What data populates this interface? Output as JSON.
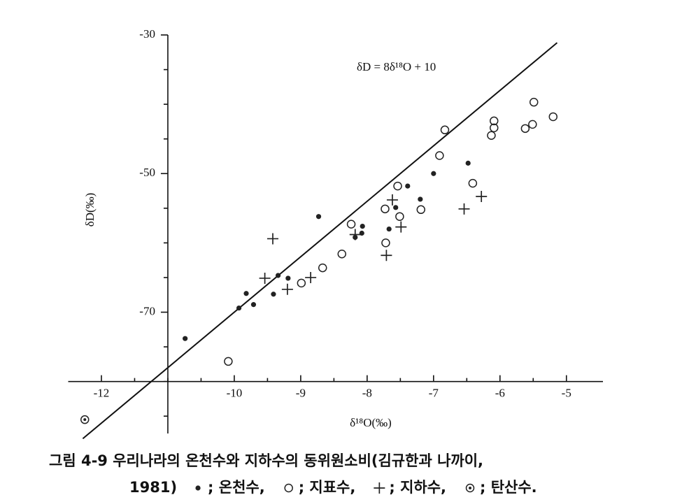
{
  "chart_data": {
    "type": "scatter",
    "x_label": "δ¹⁸O(‰)",
    "y_label": "δD(‰)",
    "xlim": [
      -12.5,
      -4.45
    ],
    "ylim": [
      -87.5,
      -30
    ],
    "xticks": [
      -12,
      -10,
      -9,
      -8,
      -7,
      -6,
      -5
    ],
    "xticks_minor": [
      -11.5,
      -11,
      -10.5,
      -9.5,
      -8.5,
      -7.5,
      -6.5,
      -5.5
    ],
    "yticks": [
      -30,
      -50,
      -70
    ],
    "yticks_minor": [
      -35,
      -40,
      -45,
      -55,
      -60,
      -65,
      -75,
      -80,
      -85
    ],
    "x_axis_at": -80,
    "y_axis_at": -11,
    "line": {
      "label": "δD = 8δ¹⁸O + 10",
      "slope": 8,
      "intercept": 10,
      "x": [
        -12.28,
        -5.14
      ]
    },
    "caption": [
      "그림 4-9  우리나라의  온천수와  지하수의  동위원소비(김규한과  나까이,",
      "1981)"
    ],
    "series": [
      {
        "name": "온천수",
        "legend_label": "; 온천수,",
        "marker": "filled",
        "color": "#222",
        "x": [
          -10.74,
          -9.93,
          -9.82,
          -9.71,
          -9.41,
          -9.34,
          -9.19,
          -8.73,
          -8.18,
          -8.08,
          -8.07,
          -7.67,
          -7.57,
          -7.39,
          -7.2,
          -7.0,
          -6.48
        ],
        "values": [
          -73.8,
          -69.4,
          -67.3,
          -68.9,
          -67.4,
          -64.7,
          -65.1,
          -56.2,
          -59.2,
          -58.6,
          -57.6,
          -58.0,
          -54.9,
          -51.8,
          -53.7,
          -50.0,
          -48.5
        ]
      },
      {
        "name": "지표수",
        "legend_label": "; 지표수,",
        "marker": "open",
        "color": "#222",
        "x": [
          -10.09,
          -8.99,
          -8.67,
          -8.38,
          -8.24,
          -7.73,
          -7.72,
          -7.51,
          -7.54,
          -7.19,
          -6.91,
          -6.83,
          -6.41,
          -6.13,
          -6.09,
          -6.09,
          -5.62,
          -5.51,
          -5.49,
          -5.2
        ],
        "values": [
          -77.1,
          -65.8,
          -63.6,
          -61.6,
          -57.3,
          -55.1,
          -60.0,
          -56.2,
          -51.8,
          -55.2,
          -47.4,
          -43.7,
          -51.4,
          -44.5,
          -43.4,
          -42.4,
          -43.5,
          -42.9,
          -39.7,
          -41.8
        ]
      },
      {
        "name": "지하수",
        "legend_label": "; 지하수,",
        "marker": "plus",
        "color": "#222",
        "x": [
          -9.42,
          -9.54,
          -9.2,
          -8.85,
          -8.18,
          -7.62,
          -7.49,
          -7.71,
          -6.54,
          -6.28
        ],
        "values": [
          -59.4,
          -65.1,
          -66.7,
          -65.0,
          -58.8,
          -53.8,
          -57.7,
          -61.8,
          -55.1,
          -53.3
        ]
      },
      {
        "name": "탄산수",
        "legend_label": "; 탄산수.",
        "marker": "bullseye",
        "color": "#222",
        "x": [
          -12.25
        ],
        "values": [
          -85.5
        ]
      }
    ]
  }
}
